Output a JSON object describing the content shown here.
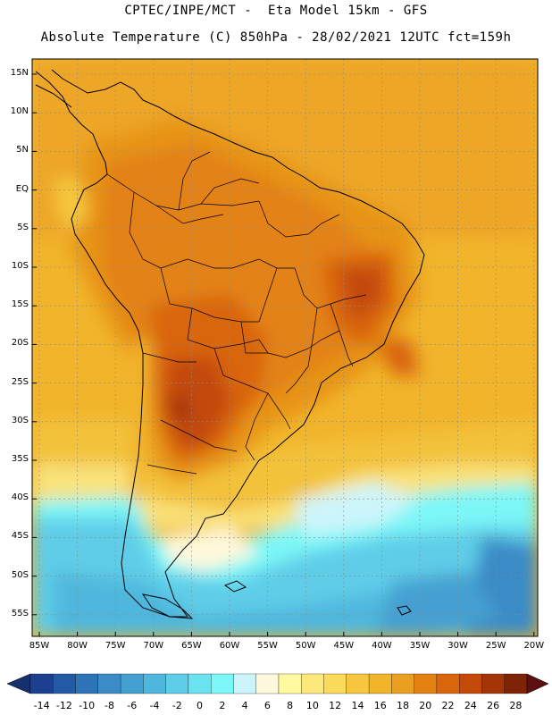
{
  "header": {
    "line1": "CPTEC/INPE/MCT -  Eta Model 15km - GFS",
    "line2": "Absolute Temperature (C) 850hPa - 28/02/2021 12UTC fct=159h"
  },
  "map": {
    "lat_labels": [
      "15N",
      "10N",
      "5N",
      "EQ",
      "5S",
      "10S",
      "15S",
      "20S",
      "25S",
      "30S",
      "35S",
      "40S",
      "45S",
      "50S",
      "55S"
    ],
    "lon_labels": [
      "85W",
      "80W",
      "75W",
      "70W",
      "65W",
      "60W",
      "55W",
      "50W",
      "45W",
      "40W",
      "35W",
      "30W",
      "25W",
      "20W"
    ],
    "region": "South America"
  },
  "colorbar": {
    "labels": [
      "-14",
      "-12",
      "-10",
      "-8",
      "-6",
      "-4",
      "-2",
      "0",
      "2",
      "4",
      "6",
      "8",
      "10",
      "12",
      "14",
      "16",
      "18",
      "20",
      "22",
      "24",
      "26",
      "28"
    ],
    "colors": [
      "#1c3f8f",
      "#245aa3",
      "#2e73b6",
      "#3a8bc6",
      "#44a0d1",
      "#4fb7dd",
      "#5ecde8",
      "#6ae2ef",
      "#7cf7f7",
      "#ccf5fb",
      "#fff8dc",
      "#fffaa0",
      "#fde97a",
      "#fadb5b",
      "#f6c73e",
      "#f1b42b",
      "#eb9f1e",
      "#e38213",
      "#d9650d",
      "#c34a09",
      "#a53507",
      "#7f2306"
    ],
    "under_color": "#16306e",
    "over_color": "#5c0f10"
  }
}
